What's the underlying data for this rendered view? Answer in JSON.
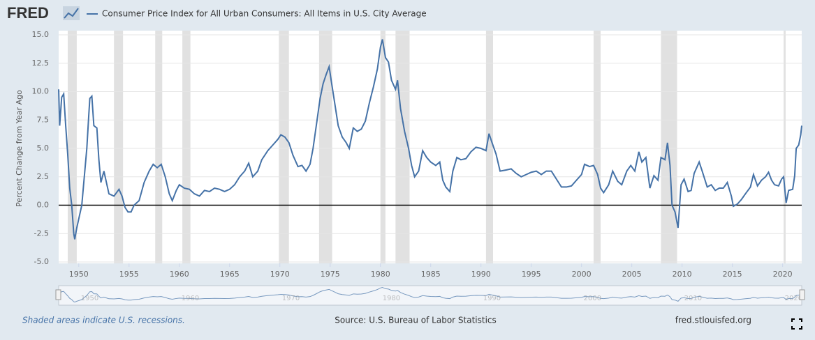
{
  "logo": "FRED",
  "note": "Shaded areas indicate U.S. recessions.",
  "source": "Source: U.S. Bureau of Labor Statistics",
  "site": "fred.stlouisfed.org",
  "chart_data": {
    "type": "line",
    "ylabel": "Percent Change from Year Ago",
    "xlim": [
      1948,
      2021.9
    ],
    "ylim": [
      -5,
      15
    ],
    "yticks": [
      {
        "value": 15,
        "label": "15.0"
      },
      12.5,
      {
        "value": 10,
        "label": "10.0"
      },
      7.5,
      {
        "value": 5,
        "label": "5.0"
      },
      2.5,
      {
        "value": 0,
        "label": "0.0"
      },
      -2.5,
      {
        "value": -5,
        "label": "-5.0"
      }
    ],
    "xticks": [
      1950,
      1955,
      1960,
      1965,
      1970,
      1975,
      1980,
      1985,
      1990,
      1995,
      2000,
      2005,
      2010,
      2015,
      2020
    ],
    "navigator_xticks": [
      1950,
      1960,
      1970,
      1980,
      1990,
      2000,
      2010,
      2020
    ],
    "grid": true,
    "recessions": [
      [
        1948.9,
        1949.8
      ],
      [
        1953.5,
        1954.4
      ],
      [
        1957.6,
        1958.3
      ],
      [
        1960.3,
        1961.1
      ],
      [
        1969.9,
        1970.9
      ],
      [
        1973.9,
        1975.2
      ],
      [
        1980.0,
        1980.5
      ],
      [
        1981.5,
        1982.9
      ],
      [
        1990.5,
        1991.2
      ],
      [
        2001.2,
        2001.9
      ],
      [
        2007.9,
        2009.5
      ],
      [
        2020.1,
        2020.3
      ]
    ],
    "x": [
      1948.0,
      1948.1,
      1948.3,
      1948.5,
      1948.7,
      1948.9,
      1949.1,
      1949.3,
      1949.5,
      1949.6,
      1949.8,
      1950.0,
      1950.3,
      1950.5,
      1950.8,
      1951.0,
      1951.1,
      1951.3,
      1951.5,
      1951.8,
      1952.0,
      1952.2,
      1952.5,
      1952.8,
      1953.0,
      1953.5,
      1954.0,
      1954.3,
      1954.6,
      1954.9,
      1955.2,
      1955.5,
      1956.0,
      1956.5,
      1957.0,
      1957.4,
      1957.8,
      1958.2,
      1958.6,
      1959.0,
      1959.3,
      1959.7,
      1960.0,
      1960.5,
      1961.0,
      1961.5,
      1962.0,
      1962.5,
      1963.0,
      1963.5,
      1964.0,
      1964.5,
      1965.0,
      1965.5,
      1966.0,
      1966.5,
      1966.9,
      1967.3,
      1967.8,
      1968.2,
      1968.8,
      1969.3,
      1969.8,
      1970.1,
      1970.5,
      1970.9,
      1971.3,
      1971.8,
      1972.2,
      1972.6,
      1973.0,
      1973.3,
      1973.7,
      1974.0,
      1974.3,
      1974.6,
      1974.9,
      1975.1,
      1975.4,
      1975.8,
      1976.2,
      1976.6,
      1976.9,
      1977.3,
      1977.7,
      1978.1,
      1978.5,
      1978.9,
      1979.3,
      1979.7,
      1980.0,
      1980.2,
      1980.5,
      1980.8,
      1981.1,
      1981.5,
      1981.7,
      1982.0,
      1982.4,
      1982.8,
      1983.1,
      1983.4,
      1983.8,
      1984.2,
      1984.6,
      1985.0,
      1985.5,
      1985.9,
      1986.2,
      1986.5,
      1986.9,
      1987.2,
      1987.6,
      1988.0,
      1988.5,
      1989.0,
      1989.5,
      1990.0,
      1990.5,
      1990.8,
      1991.1,
      1991.5,
      1991.9,
      1992.5,
      1993.0,
      1993.5,
      1994.0,
      1994.5,
      1995.0,
      1995.5,
      1996.0,
      1996.5,
      1997.0,
      1997.5,
      1998.0,
      1998.5,
      1999.0,
      1999.5,
      2000.0,
      2000.3,
      2000.8,
      2001.2,
      2001.6,
      2001.9,
      2002.2,
      2002.7,
      2003.1,
      2003.6,
      2004.0,
      2004.5,
      2004.9,
      2005.3,
      2005.7,
      2006.0,
      2006.4,
      2006.8,
      2007.2,
      2007.6,
      2007.9,
      2008.3,
      2008.55,
      2008.8,
      2009.0,
      2009.3,
      2009.6,
      2009.9,
      2010.2,
      2010.6,
      2010.9,
      2011.2,
      2011.7,
      2012.0,
      2012.5,
      2012.9,
      2013.3,
      2013.7,
      2014.1,
      2014.5,
      2014.9,
      2015.1,
      2015.5,
      2015.9,
      2016.3,
      2016.8,
      2017.1,
      2017.5,
      2017.9,
      2018.3,
      2018.6,
      2018.9,
      2019.2,
      2019.6,
      2019.9,
      2020.1,
      2020.35,
      2020.6,
      2021.0,
      2021.2,
      2021.35,
      2021.6,
      2021.8,
      2021.9
    ],
    "series": [
      {
        "name": "Consumer Price Index for All Urban Consumers: All Items in U.S. City Average",
        "color": "#4572a7",
        "values": [
          10.2,
          7.0,
          9.5,
          9.8,
          7.0,
          4.5,
          1.5,
          0.0,
          -2.5,
          -3.0,
          -2.0,
          -1.2,
          0.0,
          2.0,
          5.0,
          8.0,
          9.4,
          9.6,
          7.0,
          6.8,
          4.0,
          2.0,
          3.0,
          1.8,
          1.0,
          0.8,
          1.4,
          0.8,
          -0.2,
          -0.6,
          -0.6,
          0.0,
          0.4,
          2.0,
          3.0,
          3.6,
          3.3,
          3.6,
          2.5,
          1.0,
          0.4,
          1.3,
          1.8,
          1.5,
          1.4,
          1.0,
          0.8,
          1.3,
          1.2,
          1.5,
          1.4,
          1.2,
          1.4,
          1.8,
          2.5,
          3.0,
          3.7,
          2.5,
          3.0,
          4.0,
          4.8,
          5.3,
          5.8,
          6.2,
          6.0,
          5.5,
          4.4,
          3.4,
          3.5,
          3.0,
          3.6,
          5.0,
          7.5,
          9.4,
          10.7,
          11.5,
          12.2,
          11.0,
          9.3,
          7.0,
          6.0,
          5.5,
          5.0,
          6.8,
          6.5,
          6.7,
          7.4,
          9.0,
          10.4,
          12.0,
          13.9,
          14.6,
          13.0,
          12.6,
          11.0,
          10.2,
          11.0,
          8.5,
          6.5,
          5.0,
          3.5,
          2.5,
          3.0,
          4.8,
          4.2,
          3.8,
          3.5,
          3.8,
          2.2,
          1.6,
          1.2,
          3.0,
          4.2,
          4.0,
          4.1,
          4.7,
          5.1,
          5.0,
          4.8,
          6.3,
          5.5,
          4.5,
          3.0,
          3.1,
          3.2,
          2.8,
          2.5,
          2.7,
          2.9,
          3.0,
          2.7,
          3.0,
          3.0,
          2.3,
          1.6,
          1.6,
          1.7,
          2.2,
          2.7,
          3.6,
          3.4,
          3.5,
          2.7,
          1.5,
          1.1,
          1.8,
          3.0,
          2.1,
          1.8,
          3.0,
          3.5,
          3.0,
          4.7,
          3.8,
          4.2,
          1.5,
          2.6,
          2.2,
          4.2,
          4.0,
          5.5,
          3.5,
          0.0,
          -0.6,
          -2.0,
          1.8,
          2.3,
          1.2,
          1.3,
          2.8,
          3.8,
          3.0,
          1.6,
          1.8,
          1.3,
          1.5,
          1.5,
          2.0,
          0.8,
          -0.1,
          0.1,
          0.5,
          1.0,
          1.6,
          2.7,
          1.7,
          2.2,
          2.5,
          2.9,
          2.2,
          1.8,
          1.7,
          2.3,
          2.5,
          0.2,
          1.3,
          1.4,
          2.6,
          5.0,
          5.3,
          6.2,
          7.0
        ]
      }
    ]
  }
}
